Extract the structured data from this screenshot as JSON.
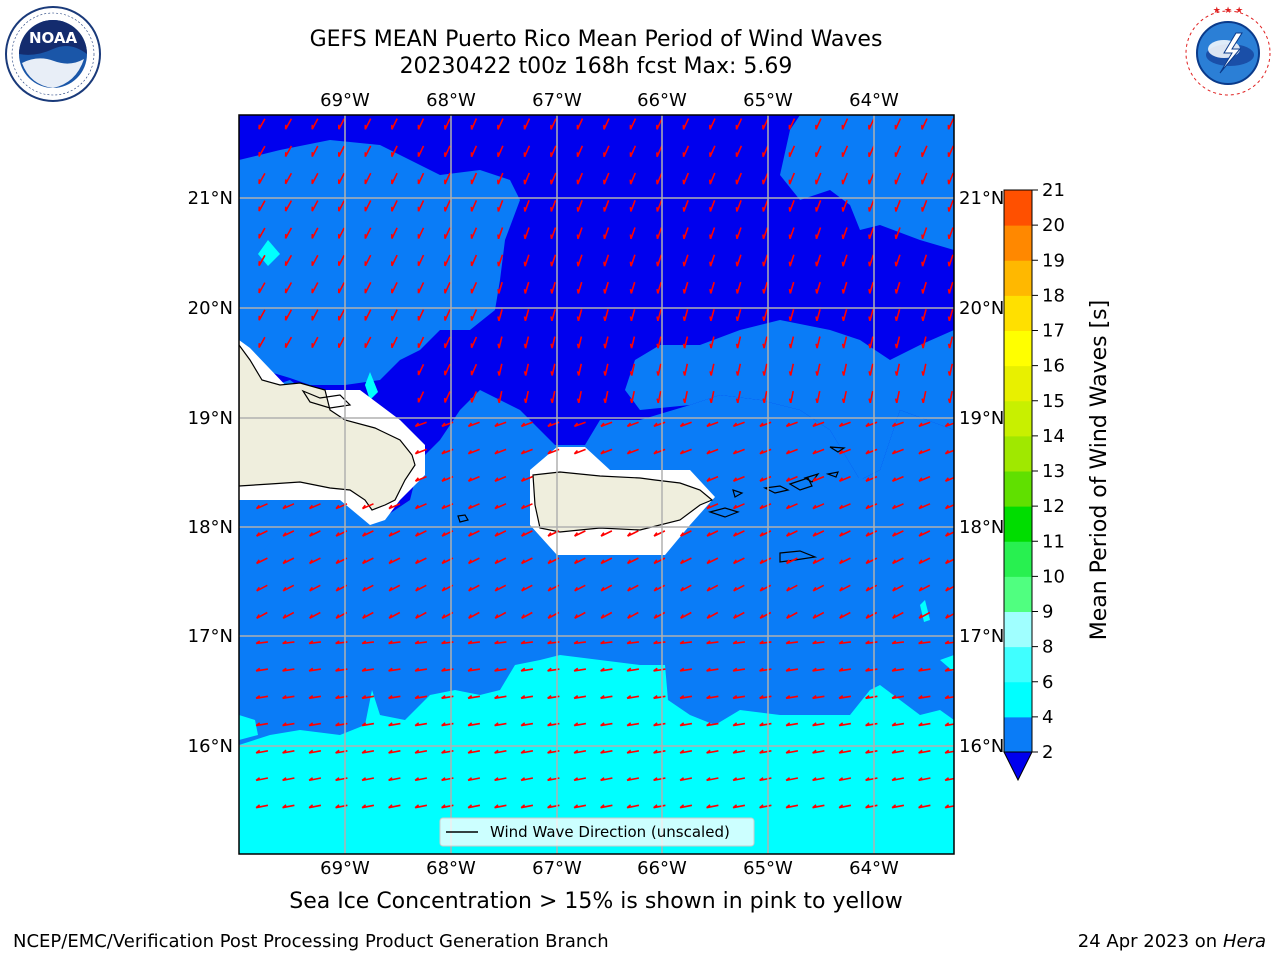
{
  "header": {
    "title_line1": "GEFS MEAN Puerto Rico Mean Period of Wind Waves",
    "title_line2": "20230422 t00z 168h fcst   Max: 5.69"
  },
  "logos": {
    "left": {
      "name": "noaa-logo",
      "text": "NOAA",
      "ring": "NATIONAL OCEANIC AND ATMOSPHERIC ADMINISTRATION · U.S. DEPARTMENT OF COMMERCE"
    },
    "right": {
      "name": "nws-logo",
      "ring": "NATIONAL WEATHER SERVICE"
    }
  },
  "map": {
    "lon_labels": [
      "69°W",
      "68°W",
      "67°W",
      "66°W",
      "65°W",
      "64°W"
    ],
    "lat_labels": [
      "21°N",
      "20°N",
      "19°N",
      "18°N",
      "17°N",
      "16°N"
    ],
    "legend_label": "Wind Wave Direction (unscaled)",
    "arrow_color": "#ff0000",
    "land_color": "#efeedd",
    "fill_levels": {
      "below_2": "#0000ee",
      "2_4": "#0a7cf7",
      "4_6": "#00ffff"
    }
  },
  "colorbar": {
    "label": "Mean Period of Wind Waves [s]",
    "ticks": [
      "2",
      "4",
      "6",
      "8",
      "9",
      "10",
      "11",
      "12",
      "13",
      "14",
      "15",
      "16",
      "17",
      "18",
      "19",
      "20",
      "21"
    ],
    "colors": [
      "#0a7cf7",
      "#00ffff",
      "#40ffff",
      "#a0ffff",
      "#50ff80",
      "#28f050",
      "#00dd00",
      "#60e000",
      "#a0e800",
      "#c8f000",
      "#e8f000",
      "#ffff00",
      "#ffe000",
      "#ffb800",
      "#ff8800",
      "#ff5000",
      "#ff2000",
      "#ff0000"
    ],
    "under_color": "#0000ee"
  },
  "subtitle": "Sea Ice Concentration > 15% is shown in pink to yellow",
  "footer": {
    "left": "NCEP/EMC/Verification Post Processing Product Generation Branch",
    "right_prefix": "24 Apr 2023 on ",
    "right_machine": "Hera"
  }
}
